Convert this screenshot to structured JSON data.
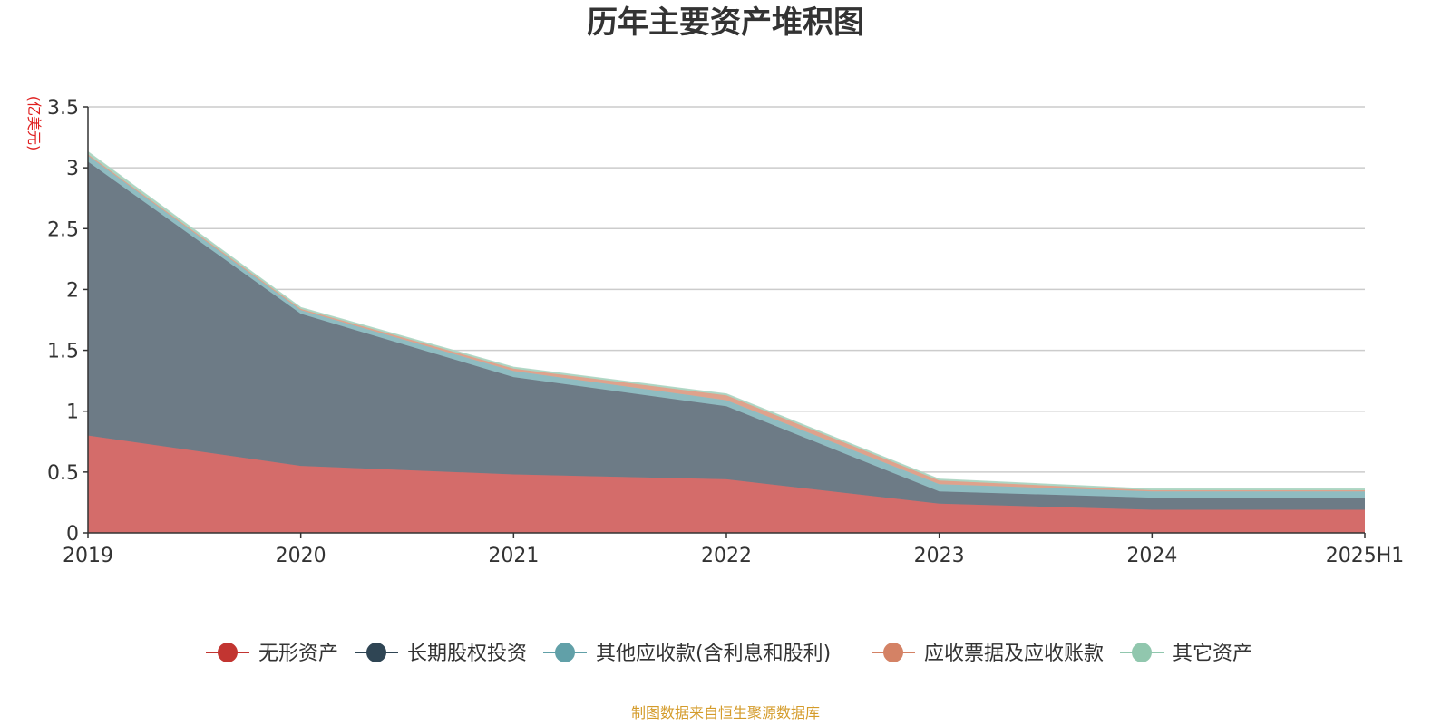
{
  "chart_data": {
    "type": "area",
    "stacked": true,
    "title": "历年主要资产堆积图",
    "unit_label": "(亿美元)",
    "categories": [
      "2019",
      "2020",
      "2021",
      "2022",
      "2023",
      "2024",
      "2025H1"
    ],
    "ylim": [
      0,
      3.5
    ],
    "yticks": [
      0,
      0.5,
      1,
      1.5,
      2,
      2.5,
      3,
      3.5
    ],
    "ytick_labels": [
      "0",
      "0.5",
      "1",
      "1.5",
      "2",
      "2.5",
      "3",
      "3.5"
    ],
    "grid": true,
    "legend_position": "bottom",
    "series": [
      {
        "name": "无形资产",
        "color": "#c23531",
        "fill": "#d46c6a",
        "values": [
          0.8,
          0.55,
          0.48,
          0.44,
          0.24,
          0.19,
          0.19
        ]
      },
      {
        "name": "长期股权投资",
        "color": "#2f4554",
        "fill": "#6d7b86",
        "values": [
          2.25,
          1.25,
          0.8,
          0.6,
          0.1,
          0.1,
          0.1
        ]
      },
      {
        "name": "其他应收款(含利息和股利)",
        "color": "#61a0a8",
        "fill": "#8fbcc1",
        "values": [
          0.05,
          0.03,
          0.05,
          0.05,
          0.06,
          0.05,
          0.05
        ]
      },
      {
        "name": "应收票据及应收账款",
        "color": "#d48265",
        "fill": "#dfa28c",
        "values": [
          0.01,
          0.01,
          0.02,
          0.04,
          0.03,
          0.01,
          0.01
        ]
      },
      {
        "name": "其它资产",
        "color": "#91c7ae",
        "fill": "#acd5c2",
        "values": [
          0.02,
          0.01,
          0.01,
          0.01,
          0.01,
          0.01,
          0.01
        ]
      }
    ]
  },
  "footer": {
    "source": "制图数据来自恒生聚源数据库"
  }
}
